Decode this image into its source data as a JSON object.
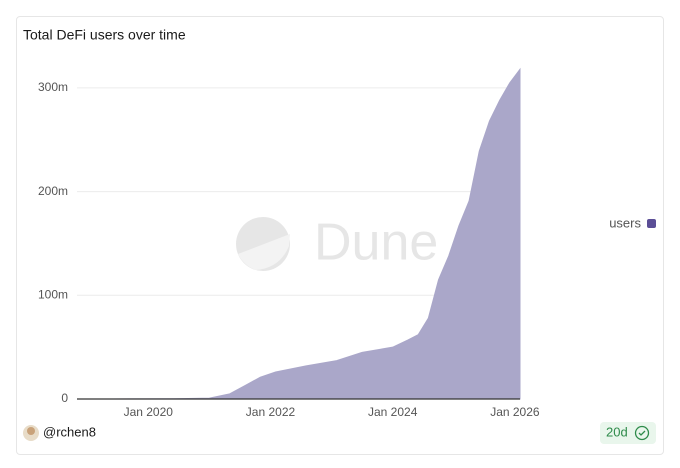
{
  "chart_data": {
    "type": "area",
    "title": "Total DeFi users over time",
    "watermark": "Dune",
    "x": [
      "2018-11",
      "2019-06",
      "2020-06",
      "2021-01",
      "2021-05",
      "2021-08",
      "2021-11",
      "2022-02",
      "2022-08",
      "2023-02",
      "2023-07",
      "2024-01",
      "2024-04",
      "2024-06",
      "2024-08",
      "2024-10",
      "2024-12",
      "2025-02",
      "2025-04",
      "2025-06",
      "2025-08",
      "2025-10",
      "2025-12",
      "2026-02"
    ],
    "series": [
      {
        "name": "users",
        "color": "#5b4e96",
        "fill": "#aaa7c9",
        "values": [
          0,
          0,
          0.3,
          0.8,
          5,
          13,
          21,
          26,
          32,
          37,
          45,
          50,
          57,
          62,
          78,
          115,
          138,
          167,
          191,
          239,
          268,
          288,
          305,
          318
        ]
      }
    ],
    "xlim": [
      "2018-11",
      "2026-02"
    ],
    "xticks": [
      {
        "value": "2020-01",
        "label": "Jan 2020"
      },
      {
        "value": "2022-01",
        "label": "Jan 2022"
      },
      {
        "value": "2024-01",
        "label": "Jan 2024"
      },
      {
        "value": "2026-01",
        "label": "Jan 2026"
      }
    ],
    "ylim": [
      0,
      325
    ],
    "yticks": [
      {
        "value": 0,
        "label": "0"
      },
      {
        "value": 100,
        "label": "100m"
      },
      {
        "value": 200,
        "label": "200m"
      },
      {
        "value": 300,
        "label": "300m"
      }
    ],
    "grid": true,
    "legend": "right"
  },
  "footer": {
    "author": "@rchen8",
    "age": "20d"
  }
}
